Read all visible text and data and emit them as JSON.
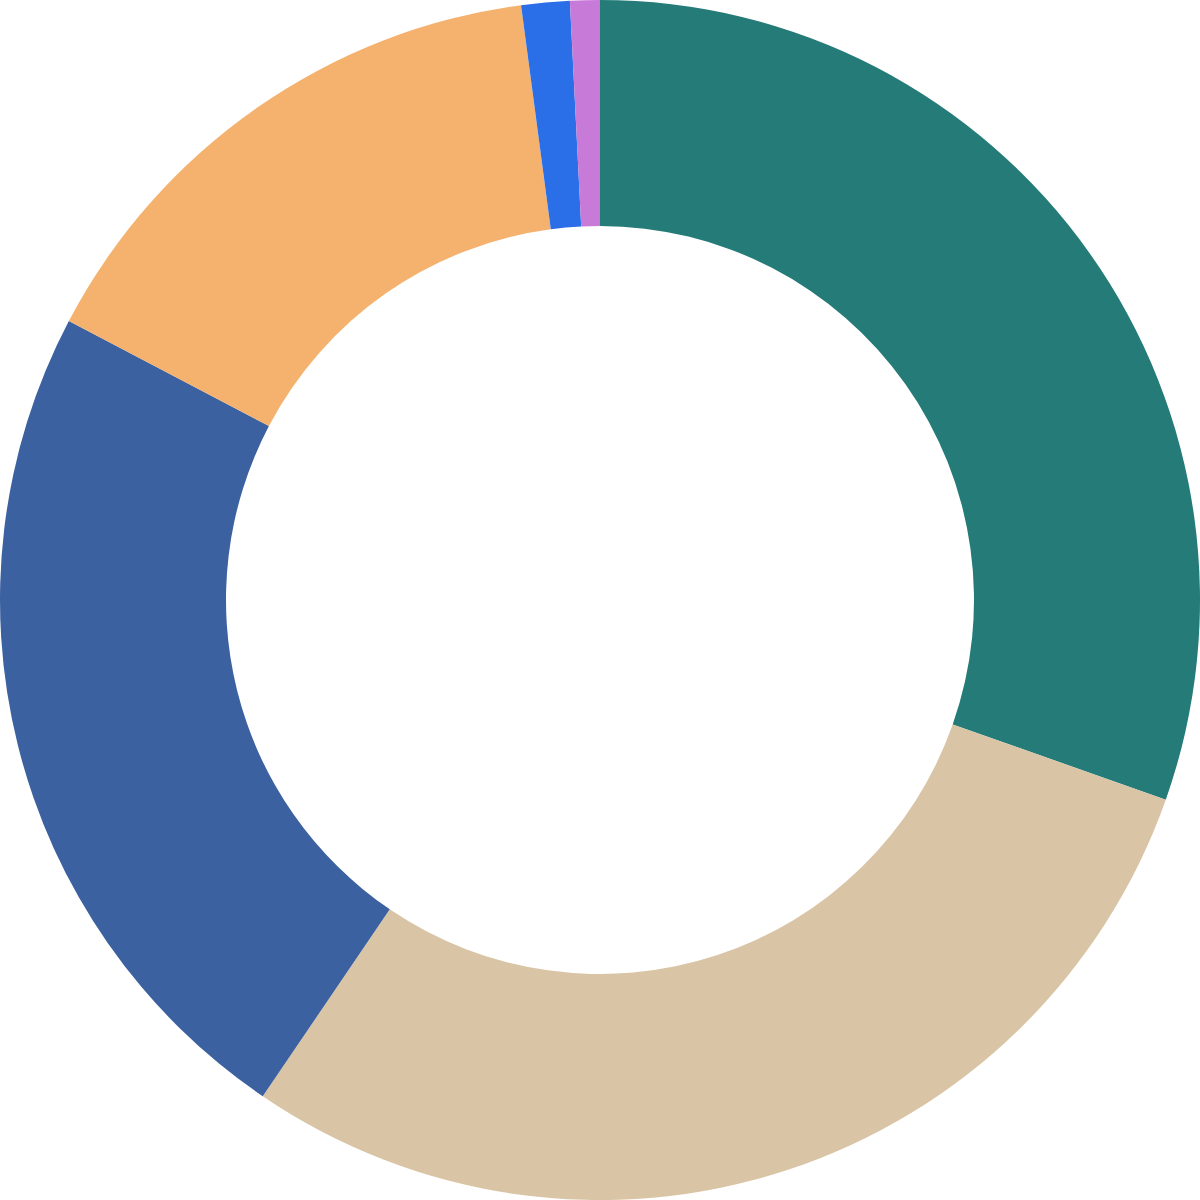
{
  "chart_data": {
    "type": "donut",
    "categories": [
      null,
      null,
      null,
      null,
      null,
      null
    ],
    "values": [
      30.4,
      29.1,
      23.2,
      15.2,
      1.3,
      0.8
    ],
    "colors": [
      "#247b78",
      "#d9c5a5",
      "#3c61a0",
      "#f4b26e",
      "#2a6fe8",
      "#c77ad8"
    ]
  }
}
